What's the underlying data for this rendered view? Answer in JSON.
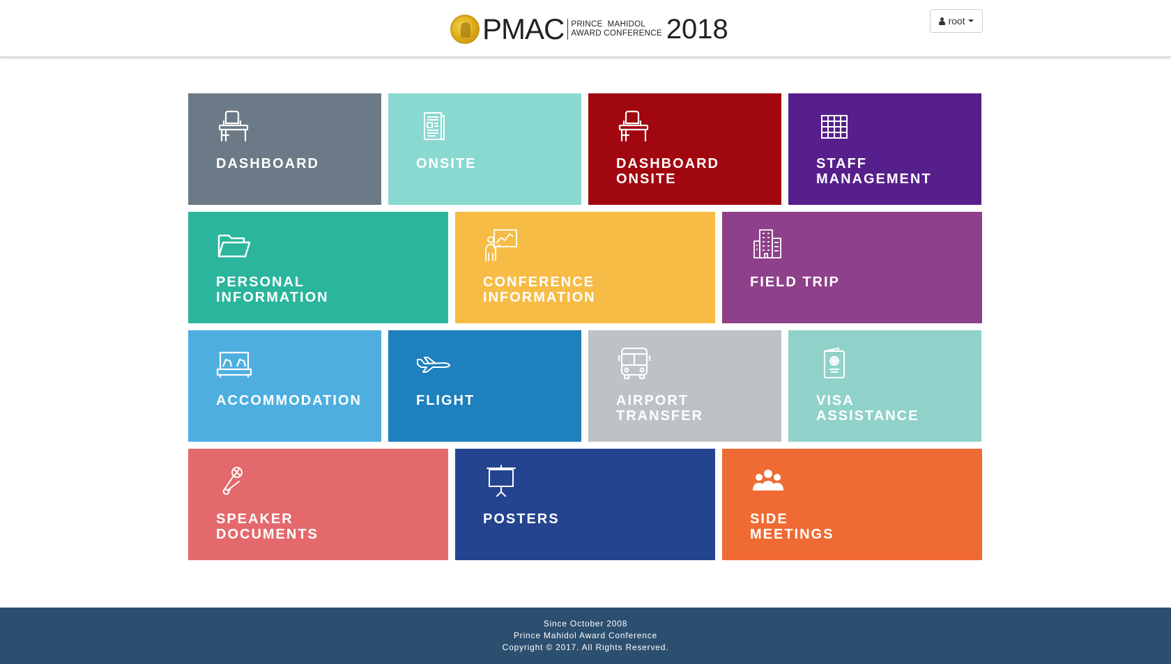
{
  "header": {
    "logo": {
      "brand": "PMAC",
      "sub_line1": "PRINCE  MAHIDOL",
      "sub_line2": "AWARD CONFERENCE",
      "year": "2018"
    },
    "user_menu": {
      "label": "root",
      "icon": "user-icon"
    }
  },
  "tiles": [
    {
      "line1": "DASHBOARD",
      "line2": "",
      "color": "#6c7a87",
      "icon": "desk-chair-icon"
    },
    {
      "line1": "ONSITE",
      "line2": "",
      "color": "#89d9d1",
      "icon": "newspaper-icon"
    },
    {
      "line1": "DASHBOARD",
      "line2": "ONSITE",
      "color": "#a1070f",
      "icon": "desk-chair-icon"
    },
    {
      "line1": "STAFF",
      "line2": "MANAGEMENT",
      "color": "#561f8c",
      "icon": "grid-icon"
    },
    {
      "line1": "PERSONAL",
      "line2": "INFORMATION",
      "color": "#2bb59c",
      "icon": "folder-icon"
    },
    {
      "line1": "CONFERENCE",
      "line2": "INFORMATION",
      "color": "#f6bc45",
      "icon": "presentation-icon"
    },
    {
      "line1": "FIELD TRIP",
      "line2": "",
      "color": "#8e418a",
      "icon": "building-icon"
    },
    {
      "line1": "ACCOMMODATION",
      "line2": "",
      "color": "#4eaee0",
      "icon": "bed-icon"
    },
    {
      "line1": "FLIGHT",
      "line2": "",
      "color": "#1e80bd",
      "icon": "airplane-icon"
    },
    {
      "line1": "AIRPORT",
      "line2": "TRANSFER",
      "color": "#bec1c6",
      "icon": "bus-icon"
    },
    {
      "line1": "VISA",
      "line2": "ASSISTANCE",
      "color": "#90d2ca",
      "icon": "passport-icon"
    },
    {
      "line1": "SPEAKER",
      "line2": "DOCUMENTS",
      "color": "#e3696d",
      "icon": "microphone-icon"
    },
    {
      "line1": "POSTERS",
      "line2": "",
      "color": "#24448f",
      "icon": "projector-screen-icon"
    },
    {
      "line1": "SIDE",
      "line2": "MEETINGS",
      "color": "#ef6b33",
      "icon": "group-icon"
    }
  ],
  "footer": {
    "line1": "Since October 2008",
    "line2": "Prince Mahidol Award Conference",
    "line3": "Copyright © 2017. All Rights Reserved."
  }
}
